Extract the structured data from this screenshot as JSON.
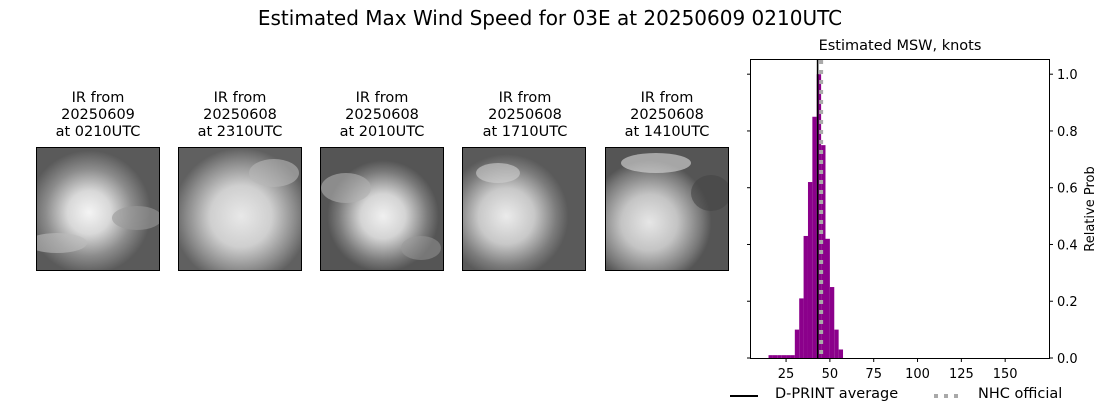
{
  "title": "Estimated Max Wind Speed for 03E at 20250609 0210UTC",
  "panels": [
    {
      "line1": "IR from",
      "line2": "20250609",
      "line3": "at 0210UTC"
    },
    {
      "line1": "IR from",
      "line2": "20250608",
      "line3": "at 2310UTC"
    },
    {
      "line1": "IR from",
      "line2": "20250608",
      "line3": "at 2010UTC"
    },
    {
      "line1": "IR from",
      "line2": "20250608",
      "line3": "at 1710UTC"
    },
    {
      "line1": "IR from",
      "line2": "20250608",
      "line3": "at 1410UTC"
    }
  ],
  "chart_data": {
    "type": "bar",
    "title": "Estimated MSW, knots",
    "xlabel": "",
    "ylabel": "Relative Prob",
    "xlim": [
      5,
      175
    ],
    "ylim": [
      0,
      1.05
    ],
    "xticks": [
      25,
      50,
      75,
      100,
      125,
      150
    ],
    "yticks": [
      0.0,
      0.2,
      0.4,
      0.6,
      0.8,
      1.0
    ],
    "bin_width": 2.5,
    "bins": [
      {
        "x": 15,
        "value": 0.01
      },
      {
        "x": 17.5,
        "value": 0.01
      },
      {
        "x": 20,
        "value": 0.01
      },
      {
        "x": 22.5,
        "value": 0.01
      },
      {
        "x": 25,
        "value": 0.01
      },
      {
        "x": 27.5,
        "value": 0.01
      },
      {
        "x": 30,
        "value": 0.1
      },
      {
        "x": 32.5,
        "value": 0.21
      },
      {
        "x": 35,
        "value": 0.43
      },
      {
        "x": 37.5,
        "value": 0.62
      },
      {
        "x": 40,
        "value": 0.85
      },
      {
        "x": 42.5,
        "value": 1.0
      },
      {
        "x": 45,
        "value": 0.75
      },
      {
        "x": 47.5,
        "value": 0.42
      },
      {
        "x": 50,
        "value": 0.25
      },
      {
        "x": 52.5,
        "value": 0.1
      },
      {
        "x": 55,
        "value": 0.03
      }
    ],
    "bar_color": "#8b008b",
    "dprint_average": 43,
    "nhc_official": 45,
    "legend": [
      {
        "label": "D-PRINT average",
        "style": "solid",
        "color": "#000000"
      },
      {
        "label": "NHC official",
        "style": "dotted",
        "color": "#a9a9a9"
      }
    ],
    "legend_placement": "bottom"
  }
}
